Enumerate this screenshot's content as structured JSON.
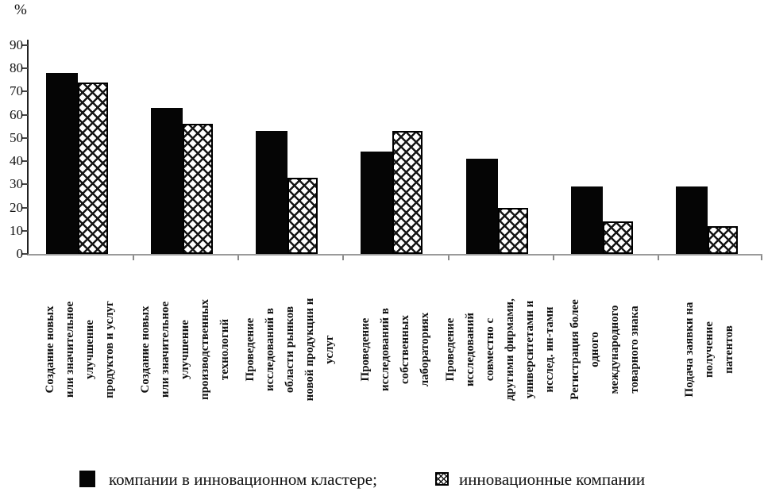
{
  "chart_data": {
    "type": "bar",
    "title": "",
    "xlabel": "",
    "ylabel": "%",
    "ylim": [
      0,
      90
    ],
    "yticks": [
      0,
      10,
      20,
      30,
      40,
      50,
      60,
      70,
      80,
      90
    ],
    "grid": false,
    "legend_position": "bottom",
    "categories": [
      "Создание новых или значительное улучшение продуктов и услуг",
      "Создание новых или значительное улучшение производственных технологий",
      "Проведение исследований в области рынков новой продукции и услуг",
      "Проведение исследований в собственных лабораториях",
      "Проведение исследований совместно с другими фирмами, университетами и исслед. ин-тами",
      "Регистрация более одного международного товарного знака",
      "Подача заявки на получение патентов"
    ],
    "category_lines": [
      [
        "Создание новых",
        "или значительное",
        "улучшение",
        "продуктов и услуг"
      ],
      [
        "Создание новых",
        "или значительное",
        "улучшение",
        "производственных",
        "технологий"
      ],
      [
        "Проведение",
        "исследований в",
        "области рынков",
        "новой продукции и",
        "услуг"
      ],
      [
        "Проведение",
        "исследований в",
        "собственных",
        "лабораториях"
      ],
      [
        "Проведение",
        "исследований",
        "совместно с",
        "другими фирмами,",
        "университетами и",
        "исслед. ин-тами"
      ],
      [
        "Регистрация более",
        "одного",
        "международного",
        "товарного знака"
      ],
      [
        "Подача заявки на",
        "получение",
        "патентов"
      ]
    ],
    "series": [
      {
        "name": "компании в инновационном кластере;",
        "pattern": "solid-black",
        "values": [
          78,
          63,
          53,
          44,
          41,
          29,
          29
        ]
      },
      {
        "name": "инновационные компании",
        "pattern": "diamond-crosshatch",
        "values": [
          74,
          56,
          33,
          53,
          20,
          14,
          12
        ]
      }
    ],
    "colors": {
      "bar_fill": "#050505",
      "hatch_line": "#151515",
      "y_axis": "#222222",
      "baseline": "#9a9a9a",
      "text": "#111111",
      "background": "#ffffff"
    }
  }
}
